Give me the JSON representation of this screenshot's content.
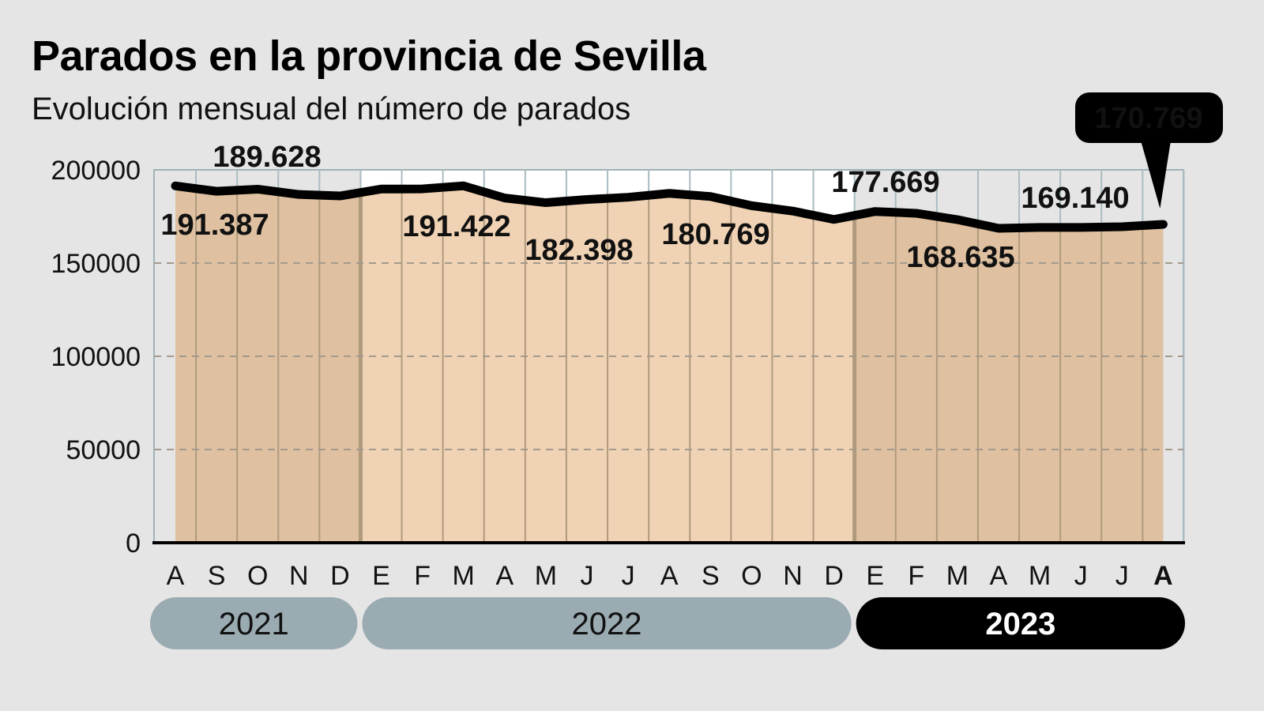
{
  "header": {
    "title": "Parados en la provincia de Sevilla",
    "subtitle": "Evolución mensual del número de parados"
  },
  "colors": {
    "background": "#e5e5e5",
    "fill_2021": "#dfc0a0",
    "fill_2022": "#f0d3b4",
    "fill_2023": "#dfc0a0",
    "plot_bg_2022": "#ffffff",
    "line": "#000000",
    "year_pill": "#9aabb1",
    "year_pill_active": "#000000"
  },
  "chart_data": {
    "type": "area",
    "title": "Parados en la provincia de Sevilla",
    "subtitle": "Evolución mensual del número de parados",
    "xlabel": "",
    "ylabel": "",
    "ylim": [
      0,
      200000
    ],
    "yticks": [
      "200000",
      "150000",
      "100000",
      "50000",
      "0"
    ],
    "grid": "horizontal dashed",
    "categories": [
      "A",
      "S",
      "O",
      "N",
      "D",
      "E",
      "F",
      "M",
      "A",
      "M",
      "J",
      "J",
      "A",
      "S",
      "O",
      "N",
      "D",
      "E",
      "F",
      "M",
      "A",
      "M",
      "J",
      "J",
      "A"
    ],
    "years": [
      {
        "label": "2021",
        "start": 0,
        "end": 4,
        "active": false
      },
      {
        "label": "2022",
        "start": 5,
        "end": 16,
        "active": false
      },
      {
        "label": "2023",
        "start": 17,
        "end": 24,
        "active": true
      }
    ],
    "values": [
      191387,
      188500,
      189628,
      186800,
      186000,
      189700,
      189800,
      191422,
      184900,
      182398,
      184100,
      185300,
      187400,
      185700,
      180769,
      177900,
      173400,
      177669,
      176700,
      173300,
      168635,
      169140,
      169100,
      169500,
      170769
    ],
    "annotations": [
      {
        "index": 0,
        "label": "191.387",
        "pos": "below"
      },
      {
        "index": 2,
        "label": "189.628",
        "pos": "above"
      },
      {
        "index": 7,
        "label": "191.422",
        "pos": "below"
      },
      {
        "index": 9,
        "label": "182.398",
        "pos": "below"
      },
      {
        "index": 14,
        "label": "180.769",
        "pos": "below"
      },
      {
        "index": 17,
        "label": "177.669",
        "pos": "above"
      },
      {
        "index": 20,
        "label": "168.635",
        "pos": "below"
      },
      {
        "index": 21,
        "label": "169.140",
        "pos": "above"
      },
      {
        "index": 24,
        "label": "170.769",
        "pos": "callout"
      }
    ]
  }
}
